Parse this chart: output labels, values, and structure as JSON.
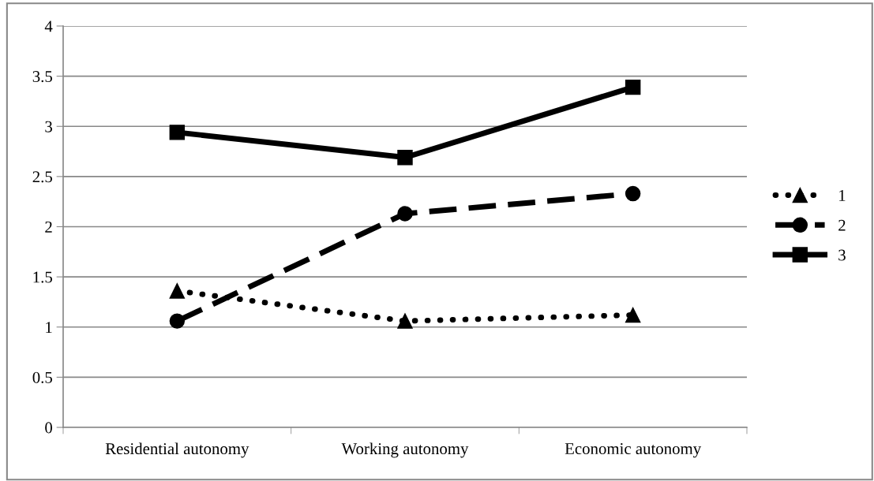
{
  "chart_data": {
    "type": "line",
    "categories": [
      "Residential autonomy",
      "Working autonomy",
      "Economic autonomy"
    ],
    "series": [
      {
        "name": "1",
        "color": "#000000",
        "values": [
          1.36,
          1.06,
          1.12
        ],
        "marker": "triangle",
        "line_style": "dotted"
      },
      {
        "name": "2",
        "color": "#000000",
        "values": [
          1.06,
          2.13,
          2.33
        ],
        "marker": "circle",
        "line_style": "dashed"
      },
      {
        "name": "3",
        "color": "#000000",
        "values": [
          2.94,
          2.69,
          3.39
        ],
        "marker": "square",
        "line_style": "solid"
      }
    ],
    "ylim": [
      0,
      4
    ],
    "yticks": [
      0,
      0.5,
      1,
      1.5,
      2,
      2.5,
      3,
      3.5,
      4
    ],
    "grid": "y",
    "legend": "right"
  }
}
